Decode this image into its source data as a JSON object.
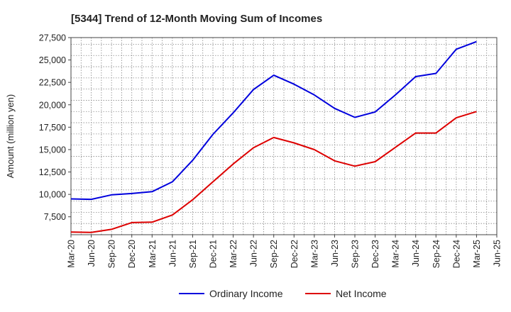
{
  "chart_data": {
    "type": "line",
    "title": "[5344]  Trend of 12-Month Moving Sum of Incomes",
    "xlabel": "",
    "ylabel": "Amount (million yen)",
    "ylim": [
      5500,
      27500
    ],
    "y_ticks": [
      27500,
      25000,
      22500,
      20000,
      17500,
      15000,
      12500,
      10000,
      7500
    ],
    "y_tick_labels": [
      "27,500",
      "25,000",
      "22,500",
      "20,000",
      "17,500",
      "15,000",
      "12,500",
      "10,000",
      "7,500"
    ],
    "x_tick_labels": [
      "Mar-20",
      "Jun-20",
      "Sep-20",
      "Dec-20",
      "Mar-21",
      "Jun-21",
      "Sep-21",
      "Dec-21",
      "Mar-22",
      "Jun-22",
      "Sep-22",
      "Dec-22",
      "Mar-23",
      "Jun-23",
      "Sep-23",
      "Dec-23",
      "Mar-24",
      "Jun-24",
      "Sep-24",
      "Dec-24",
      "Mar-25",
      "Jun-25"
    ],
    "categories": [
      "Mar-20",
      "Jun-20",
      "Sep-20",
      "Dec-20",
      "Mar-21",
      "Jun-21",
      "Sep-21",
      "Dec-21",
      "Mar-22",
      "Jun-22",
      "Sep-22",
      "Dec-22",
      "Mar-23",
      "Jun-23",
      "Sep-23",
      "Dec-23",
      "Mar-24",
      "Jun-24",
      "Sep-24",
      "Dec-24",
      "Mar-25"
    ],
    "series": [
      {
        "name": "Ordinary Income",
        "color": "#0000dd",
        "values": [
          9500,
          9450,
          9950,
          10100,
          10300,
          11400,
          13800,
          16700,
          19100,
          21700,
          23300,
          22300,
          21100,
          19600,
          18600,
          19200,
          21100,
          23150,
          23500,
          26200,
          27050
        ]
      },
      {
        "name": "Net Income",
        "color": "#dd0000",
        "values": [
          5800,
          5750,
          6100,
          6850,
          6900,
          7700,
          9400,
          11400,
          13400,
          15200,
          16350,
          15750,
          15000,
          13750,
          13150,
          13650,
          15250,
          16850,
          16850,
          18550,
          19250
        ]
      }
    ],
    "grid": true,
    "legend": "bottom-center"
  }
}
